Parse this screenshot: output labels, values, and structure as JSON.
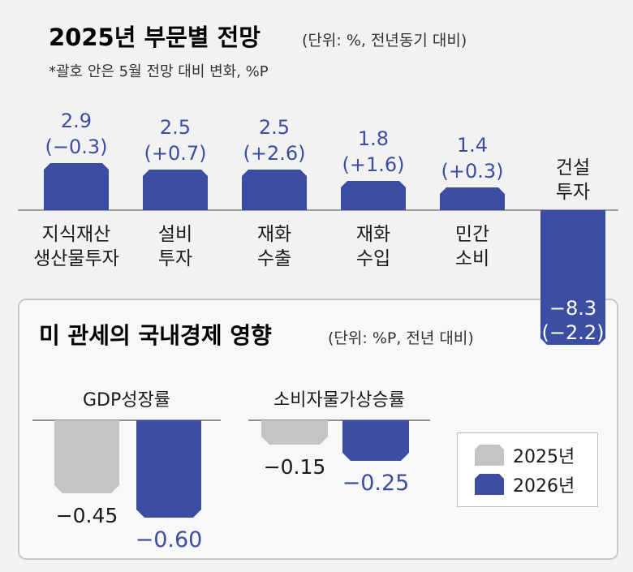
{
  "chart_data": [
    {
      "type": "bar",
      "title": "2025년 부문별 전망",
      "subtitle": "(단위: %, 전년동기 대비)",
      "note": "*괄호 안은 5월 전망 대비 변화, %P",
      "categories": [
        "지식재산\n생산물투자",
        "설비\n투자",
        "재화\n수출",
        "재화\n수입",
        "민간\n소비",
        "건설\n투자"
      ],
      "values": [
        2.9,
        2.5,
        2.5,
        1.8,
        1.4,
        -8.3
      ],
      "changes": [
        "(−0.3)",
        "(+0.7)",
        "(+2.6)",
        "(+1.6)",
        "(+0.3)",
        "(−2.2)"
      ],
      "value_labels": [
        "2.9",
        "2.5",
        "2.5",
        "1.8",
        "1.4",
        "−8.3"
      ],
      "color": "#3b4ea3"
    },
    {
      "type": "bar",
      "title": "미 관세의 국내경제 영향",
      "subtitle": "(단위: %P, 전년 대비)",
      "categories": [
        "GDP성장률",
        "소비자물가상승률"
      ],
      "series": [
        {
          "name": "2025년",
          "values": [
            -0.45,
            -0.15
          ],
          "labels": [
            "−0.45",
            "−0.15"
          ],
          "color": "#c4c4c4"
        },
        {
          "name": "2026년",
          "values": [
            -0.6,
            -0.25
          ],
          "labels": [
            "−0.60",
            "−0.25"
          ],
          "color": "#3b4ea3"
        }
      ],
      "legend": "right"
    }
  ]
}
